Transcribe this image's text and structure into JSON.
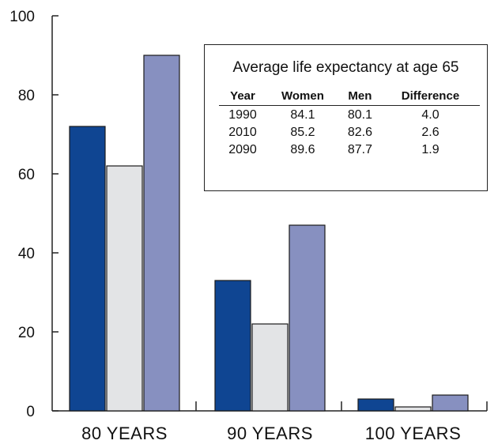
{
  "chart_data": {
    "type": "bar",
    "categories": [
      "80 YEARS",
      "90 YEARS",
      "100 YEARS"
    ],
    "series": [
      {
        "values": [
          72,
          33,
          3
        ],
        "color": "#0f4592"
      },
      {
        "values": [
          62,
          22,
          1
        ],
        "color": "#e3e4e6"
      },
      {
        "values": [
          90,
          47,
          4
        ],
        "color": "#8790c0"
      }
    ],
    "ylim": [
      0,
      100
    ],
    "yticks": [
      0,
      20,
      40,
      60,
      80,
      100
    ],
    "xlabel": "",
    "ylabel": "",
    "grid": false
  },
  "inset_table": {
    "title": "Average life expectancy at age 65",
    "headers": [
      "Year",
      "Women",
      "Men",
      "Difference"
    ],
    "rows": [
      [
        "1990",
        "84.1",
        "80.1",
        "4.0"
      ],
      [
        "2010",
        "85.2",
        "82.6",
        "2.6"
      ],
      [
        "2090",
        "89.6",
        "87.7",
        "1.9"
      ]
    ]
  }
}
